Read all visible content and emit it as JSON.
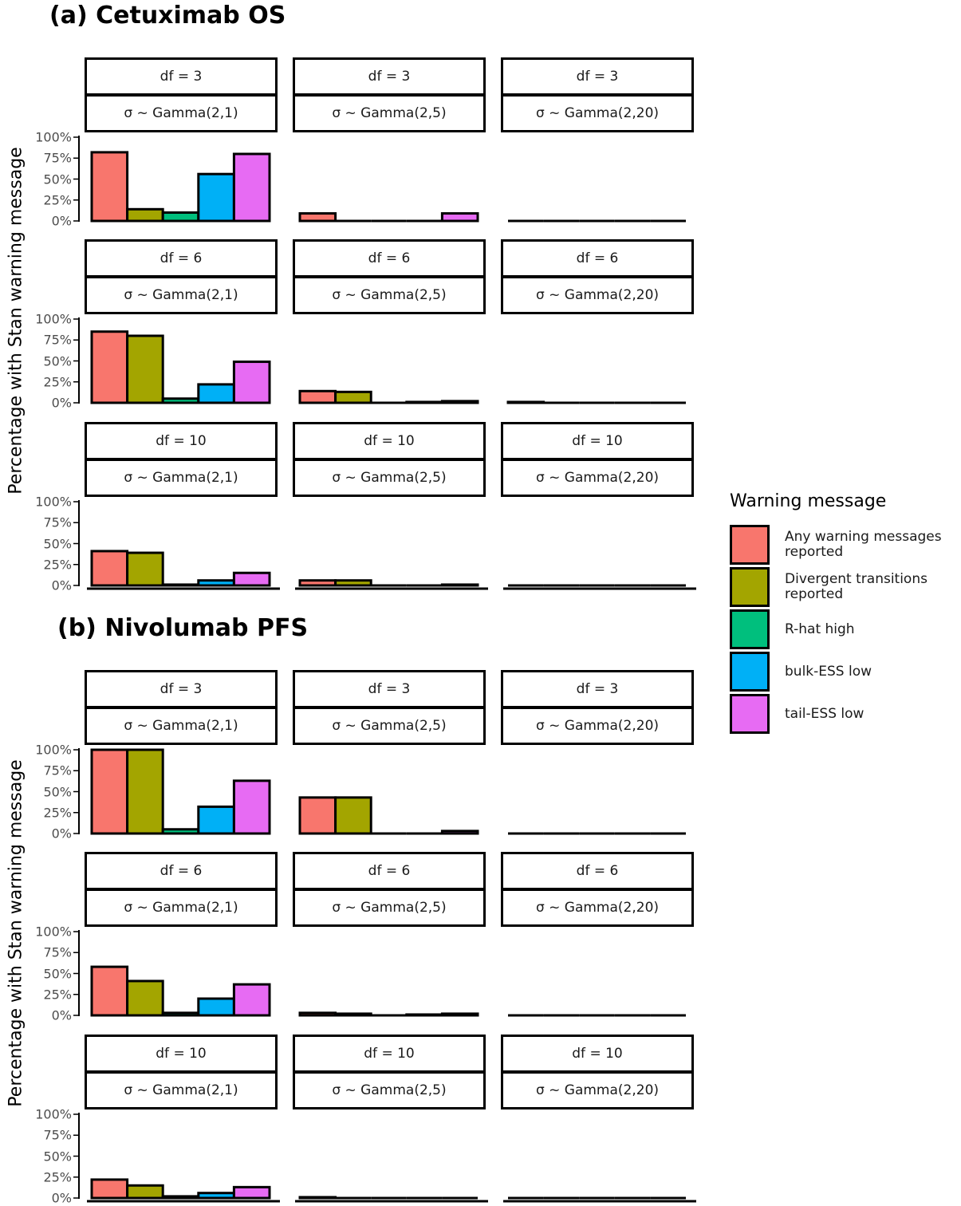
{
  "legend": {
    "title": "Warning message",
    "items": [
      {
        "label": "Any warning messages reported",
        "color": "#F8766D"
      },
      {
        "label": "Divergent transitions reported",
        "color": "#A3A500"
      },
      {
        "label": "R-hat high",
        "color": "#00BF7D"
      },
      {
        "label": "bulk-ESS low",
        "color": "#00B0F6"
      },
      {
        "label": "tail-ESS low",
        "color": "#E76BF3"
      }
    ]
  },
  "chart_data": [
    {
      "type": "bar",
      "title": "(a) Cetuximab OS",
      "ylabel": "Percentage with Stan warning message",
      "yticks": [
        "100%",
        "75%",
        "50%",
        "25%",
        "0%"
      ],
      "ylim": [
        0,
        100
      ],
      "facet_rows": [
        "df = 3",
        "df = 6",
        "df = 10"
      ],
      "facet_cols": [
        "σ ~ Gamma(2,1)",
        "σ ~ Gamma(2,5)",
        "σ ~ Gamma(2,20)"
      ],
      "categories": [
        "Any warning messages reported",
        "Divergent transitions reported",
        "R-hat high",
        "bulk-ESS low",
        "tail-ESS low"
      ],
      "values": [
        [
          [
            82,
            14,
            10,
            56,
            80
          ],
          [
            9,
            0,
            0,
            0,
            9
          ],
          [
            0,
            0,
            0,
            0,
            0
          ]
        ],
        [
          [
            85,
            80,
            5,
            22,
            49
          ],
          [
            14,
            13,
            0,
            1,
            2
          ],
          [
            1,
            0,
            0,
            0,
            0
          ]
        ],
        [
          [
            41,
            39,
            1,
            6,
            15
          ],
          [
            6,
            6,
            0,
            0,
            1
          ],
          [
            0,
            0,
            0,
            0,
            0
          ]
        ]
      ]
    },
    {
      "type": "bar",
      "title": "(b) Nivolumab PFS",
      "ylabel": "Percentage with Stan warning message",
      "yticks": [
        "100%",
        "75%",
        "50%",
        "25%",
        "0%"
      ],
      "ylim": [
        0,
        100
      ],
      "facet_rows": [
        "df = 3",
        "df = 6",
        "df = 10"
      ],
      "facet_cols": [
        "σ ~ Gamma(2,1)",
        "σ ~ Gamma(2,5)",
        "σ ~ Gamma(2,20)"
      ],
      "categories": [
        "Any warning messages reported",
        "Divergent transitions reported",
        "R-hat high",
        "bulk-ESS low",
        "tail-ESS low"
      ],
      "values": [
        [
          [
            100,
            100,
            5,
            32,
            63
          ],
          [
            43,
            43,
            0,
            0,
            3
          ],
          [
            0,
            0,
            0,
            0,
            0
          ]
        ],
        [
          [
            58,
            41,
            3,
            20,
            37
          ],
          [
            3,
            2,
            0,
            1,
            2
          ],
          [
            0,
            0,
            0,
            0,
            0
          ]
        ],
        [
          [
            22,
            15,
            2,
            6,
            13
          ],
          [
            1,
            0,
            0,
            0,
            0
          ],
          [
            0,
            0,
            0,
            0,
            0
          ]
        ]
      ]
    }
  ]
}
